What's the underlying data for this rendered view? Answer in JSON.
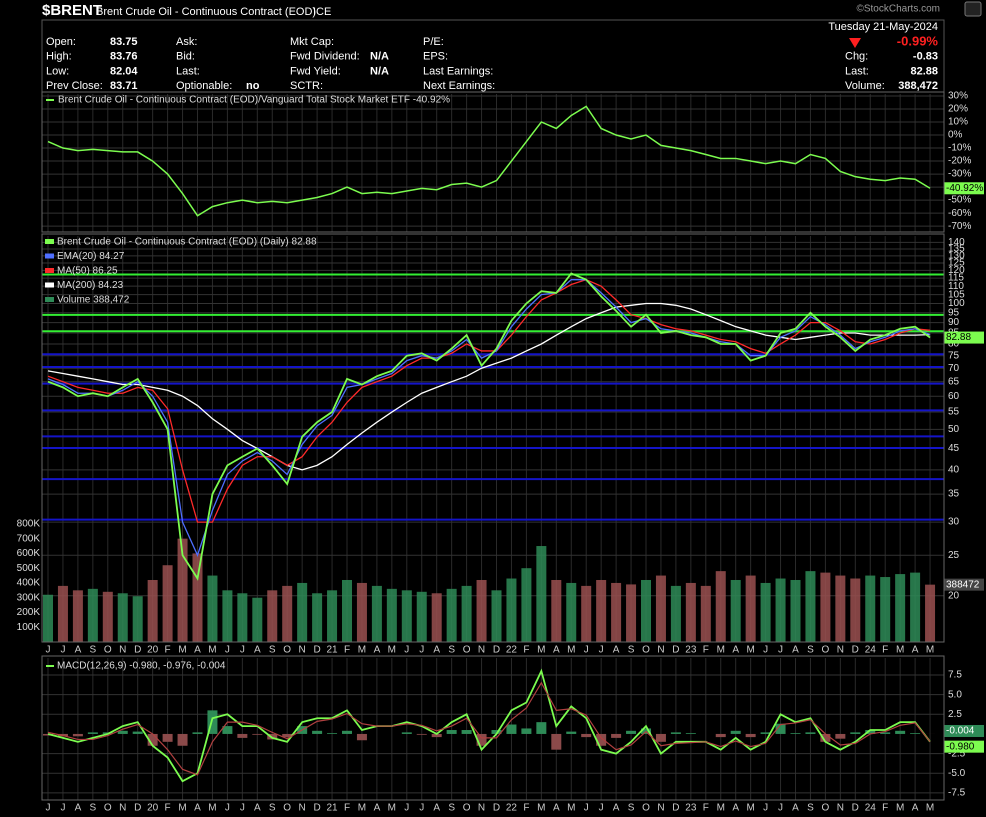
{
  "header": {
    "symbol": "$BRENT",
    "name": "Brent Crude Oil - Continuous Contract (EOD)",
    "exchange": "ICE",
    "watermark": "©StockCharts.com",
    "date": "Tuesday 21-May-2024",
    "change_pct": "-0.99%",
    "fields": [
      [
        {
          "label": "Open:",
          "value": 83.75
        },
        {
          "label": "High:",
          "value": 83.76
        },
        {
          "label": "Low:",
          "value": 82.04
        },
        {
          "label": "Prev Close:",
          "value": 83.71
        }
      ],
      [
        {
          "label": "Ask:"
        },
        {
          "label": "Bid:"
        },
        {
          "label": "Last:"
        },
        {
          "label": "Optionable:",
          "value": "no"
        }
      ],
      [
        {
          "label": "Mkt Cap:"
        },
        {
          "label": "Fwd Dividend:",
          "value": "N/A"
        },
        {
          "label": "Fwd Yield:",
          "value": "N/A"
        },
        {
          "label": "SCTR:"
        }
      ],
      [
        {
          "label": "P/E:"
        },
        {
          "label": "EPS:"
        },
        {
          "label": "Last Earnings:"
        },
        {
          "label": "Next Earnings:"
        }
      ],
      [
        {
          "label": "Chg:",
          "value": -0.83
        },
        {
          "label": "Last:",
          "value": 82.88
        },
        {
          "label": "Volume:",
          "value": "388,472"
        }
      ]
    ]
  },
  "chart_data": [
    {
      "type": "line",
      "legend_position": "top-left",
      "grid": true,
      "series": [
        {
          "name": "Brent Crude Oil - Continuous Contract (EOD)/Vanguard Total Stock Market ETF -40.92%",
          "color": "#7cfc4f",
          "values": [
            -5,
            -10,
            -12,
            -11,
            -12,
            -13,
            -13,
            -20,
            -30,
            -45,
            -62,
            -55,
            -52,
            -50,
            -52,
            -51,
            -52,
            -50,
            -48,
            -45,
            -40,
            -45,
            -44,
            -45,
            -43,
            -41,
            -42,
            -38,
            -37,
            -40,
            -35,
            -20,
            -5,
            10,
            5,
            15,
            22,
            5,
            0,
            -3,
            0,
            -8,
            -10,
            -12,
            -15,
            -18,
            -18,
            -20,
            -22,
            -20,
            -22,
            -15,
            -18,
            -28,
            -32,
            -34,
            -35,
            -33,
            -34,
            -40.92
          ],
          "value_labels": [
            null,
            null,
            null,
            null,
            null,
            null,
            null,
            null,
            null,
            null,
            null,
            null,
            null,
            null,
            null,
            null,
            null,
            null,
            null,
            null,
            null,
            null,
            null,
            null,
            null,
            null,
            null,
            null,
            null,
            null,
            null,
            null,
            null,
            null,
            null,
            null,
            null,
            null,
            null,
            null,
            null,
            null,
            null,
            null,
            null,
            null,
            null,
            null,
            null,
            null,
            null,
            null,
            null,
            null,
            null,
            null,
            null,
            null,
            null,
            "-40.92%"
          ]
        }
      ],
      "ylim": [
        -74.5,
        31.5
      ],
      "yticks": [
        {
          "value": 30,
          "label": "30%"
        },
        {
          "value": 20,
          "label": "20%"
        },
        {
          "value": 10,
          "label": "10%"
        },
        {
          "value": 0,
          "label": "0%"
        },
        {
          "value": -10,
          "label": "-10%"
        },
        {
          "value": -20,
          "label": "-20%"
        },
        {
          "value": -30,
          "label": "-30%"
        },
        {
          "value": -40,
          "label": "-40%"
        },
        {
          "value": -50,
          "label": "-50%"
        },
        {
          "value": -60,
          "label": "-60%"
        },
        {
          "value": -70,
          "label": "-70%"
        }
      ]
    },
    {
      "type": "price",
      "log_scale": true,
      "grid": true,
      "legend_position": "top-left",
      "categories": [
        "J",
        "J",
        "A",
        "S",
        "O",
        "N",
        "D",
        "20",
        "F",
        "M",
        "A",
        "M",
        "J",
        "J",
        "A",
        "S",
        "O",
        "N",
        "D",
        "21",
        "F",
        "M",
        "A",
        "M",
        "J",
        "J",
        "A",
        "S",
        "O",
        "N",
        "D",
        "22",
        "F",
        "M",
        "A",
        "M",
        "J",
        "J",
        "A",
        "S",
        "O",
        "N",
        "D",
        "23",
        "F",
        "M",
        "A",
        "M",
        "J",
        "J",
        "A",
        "S",
        "O",
        "N",
        "D",
        "24",
        "F",
        "M",
        "A",
        "M"
      ],
      "series": [
        {
          "name": "Brent Crude Oil - Continuous Contract (EOD) (Daily) 82.88",
          "color": "#7cfc4f",
          "values": [
            65,
            63,
            60,
            61,
            60,
            63,
            66,
            58,
            50,
            25,
            22,
            35,
            41,
            43,
            45,
            41,
            37,
            48,
            52,
            55,
            66,
            64,
            67,
            69,
            75,
            76,
            73,
            78,
            84,
            71,
            78,
            91,
            100,
            107,
            106,
            118,
            114,
            104,
            96,
            88,
            94,
            85,
            86,
            84,
            83,
            80,
            80,
            73,
            75,
            85,
            87,
            95,
            88,
            83,
            77,
            82,
            84,
            87,
            88,
            82.88
          ]
        },
        {
          "name": "EMA(20) 84.27",
          "color": "#4f6fff",
          "values": [
            66,
            64,
            61,
            61,
            60,
            62,
            65,
            60,
            52,
            30,
            25,
            32,
            39,
            42,
            44,
            42,
            39,
            46,
            51,
            54,
            63,
            64,
            66,
            68,
            73,
            75,
            74,
            77,
            82,
            74,
            77,
            88,
            97,
            105,
            106,
            114,
            114,
            106,
            98,
            90,
            92,
            87,
            86,
            85,
            83,
            81,
            80,
            75,
            75,
            83,
            86,
            93,
            89,
            84,
            78,
            81,
            83,
            86,
            87,
            84.27
          ]
        },
        {
          "name": "MA(50) 86.25",
          "color": "#ff2a2a",
          "values": [
            67,
            65,
            63,
            62,
            61,
            61,
            63,
            62,
            56,
            40,
            30,
            30,
            36,
            41,
            43,
            43,
            41,
            43,
            48,
            52,
            58,
            63,
            65,
            67,
            71,
            74,
            74,
            76,
            80,
            77,
            77,
            84,
            93,
            102,
            106,
            111,
            114,
            110,
            102,
            94,
            92,
            89,
            87,
            86,
            84,
            82,
            81,
            78,
            76,
            80,
            84,
            90,
            90,
            86,
            81,
            80,
            82,
            85,
            87,
            86.25
          ]
        },
        {
          "name": "MA(200) 84.23",
          "color": "#ffffff",
          "values": [
            69,
            68,
            67,
            66,
            65,
            64,
            64,
            63,
            62,
            60,
            57,
            53,
            50,
            47,
            45,
            43,
            41,
            40,
            41,
            43,
            46,
            49,
            52,
            55,
            58,
            61,
            63,
            65,
            67,
            70,
            72,
            74,
            77,
            80,
            84,
            88,
            92,
            95,
            98,
            99,
            100,
            100,
            99,
            97,
            94,
            91,
            88,
            86,
            84,
            83,
            82,
            83,
            84,
            85,
            85,
            84,
            84,
            84,
            84,
            84.23
          ]
        }
      ],
      "volume": {
        "name": "Volume 388,472",
        "colors": [
          "#2e8b57",
          "#9a5050"
        ],
        "values": [
          320000,
          380000,
          350000,
          360000,
          340000,
          330000,
          310000,
          420000,
          520000,
          700000,
          600000,
          450000,
          350000,
          330000,
          300000,
          350000,
          380000,
          400000,
          330000,
          350000,
          420000,
          400000,
          380000,
          360000,
          350000,
          340000,
          330000,
          360000,
          380000,
          420000,
          350000,
          430000,
          500000,
          650000,
          420000,
          400000,
          380000,
          420000,
          400000,
          390000,
          420000,
          450000,
          380000,
          400000,
          380000,
          480000,
          420000,
          450000,
          400000,
          430000,
          420000,
          480000,
          470000,
          450000,
          430000,
          450000,
          440000,
          460000,
          470000,
          388472
        ],
        "ylim": [
          0,
          2750000
        ],
        "yticks": [
          {
            "value": 100000,
            "label": "100K"
          },
          {
            "value": 200000,
            "label": "200K"
          },
          {
            "value": 300000,
            "label": "300K"
          },
          {
            "value": 400000,
            "label": "400K"
          },
          {
            "value": 500000,
            "label": "500K"
          },
          {
            "value": 600000,
            "label": "600K"
          },
          {
            "value": 700000,
            "label": "700K"
          },
          {
            "value": 800000,
            "label": "800K"
          }
        ]
      },
      "hlines": [
        {
          "value": 117.3,
          "color": "#33ee33"
        },
        {
          "value": 93.9,
          "color": "#33ee33"
        },
        {
          "value": 85.8,
          "color": "#33ee33"
        },
        {
          "value": 75.6,
          "color": "#1414c8"
        },
        {
          "value": 70.5,
          "color": "#1414c8"
        },
        {
          "value": 64.3,
          "color": "#1414c8"
        },
        {
          "value": 55.5,
          "color": "#1414c8"
        },
        {
          "value": 48.1,
          "color": "#1414c8"
        },
        {
          "value": 45.1,
          "color": "#1414c8"
        },
        {
          "value": 38,
          "color": "#1414c8"
        },
        {
          "value": 30.4,
          "color": "#1414c8"
        }
      ],
      "ylim": [
        15.5,
        145
      ],
      "yticks": [
        140,
        135,
        130,
        125,
        120,
        115,
        110,
        105,
        100,
        95,
        90,
        85,
        80,
        75,
        70,
        65,
        60,
        55,
        50,
        45,
        40,
        35,
        30,
        25,
        20
      ]
    },
    {
      "type": "macd",
      "legend": "MACD(12,26,9) -0.980, -0.976, -0.004",
      "grid": true,
      "categories": [
        "J",
        "J",
        "A",
        "S",
        "O",
        "N",
        "D",
        "20",
        "F",
        "M",
        "A",
        "M",
        "J",
        "J",
        "A",
        "S",
        "O",
        "N",
        "D",
        "21",
        "F",
        "M",
        "A",
        "M",
        "J",
        "J",
        "A",
        "S",
        "O",
        "N",
        "D",
        "22",
        "F",
        "M",
        "A",
        "M",
        "J",
        "J",
        "A",
        "S",
        "O",
        "N",
        "D",
        "23",
        "F",
        "M",
        "A",
        "M",
        "J",
        "J",
        "A",
        "S",
        "O",
        "N",
        "D",
        "24",
        "F",
        "M",
        "A",
        "M"
      ],
      "series": [
        {
          "color": "#7cfc4f",
          "values": [
            0,
            -0.5,
            -1,
            -0.5,
            0,
            1,
            1.5,
            -1.5,
            -3,
            -6,
            -5,
            2,
            2.5,
            1,
            1,
            -0.5,
            -1,
            1.5,
            2,
            2,
            3,
            0.5,
            1,
            1,
            1.5,
            1,
            0,
            1.5,
            2.5,
            -2,
            0,
            3,
            4,
            8,
            1,
            3.5,
            2,
            -2,
            -2.5,
            -1,
            1,
            -2.5,
            -1,
            -1,
            -1,
            -2,
            -0.5,
            -2,
            -1,
            2.5,
            1.5,
            2,
            -1,
            -2,
            -1,
            0.5,
            0.5,
            1.5,
            1.5,
            -0.98
          ],
          "value_labels": [
            null,
            null,
            null,
            null,
            null,
            null,
            null,
            null,
            null,
            null,
            null,
            null,
            null,
            null,
            null,
            null,
            null,
            null,
            null,
            null,
            null,
            null,
            null,
            null,
            null,
            null,
            null,
            null,
            null,
            null,
            null,
            null,
            null,
            null,
            null,
            null,
            null,
            null,
            null,
            null,
            null,
            null,
            null,
            null,
            null,
            null,
            null,
            null,
            null,
            null,
            null,
            null,
            null,
            null,
            null,
            null,
            null,
            null,
            null,
            "-0.980"
          ]
        },
        {
          "color": "#b04040",
          "values": [
            0.2,
            -0.2,
            -0.7,
            -0.7,
            -0.2,
            0.6,
            1.2,
            0,
            -2,
            -4.5,
            -5.2,
            -1,
            1.5,
            1.5,
            1.1,
            0.2,
            -0.6,
            0.5,
            1.6,
            1.9,
            2.6,
            1.3,
            1,
            1,
            1.3,
            1.1,
            0.4,
            1,
            2,
            -0.5,
            -0.5,
            1.8,
            3.3,
            6.5,
            3,
            3.2,
            2.4,
            -0.5,
            -2,
            -1.4,
            0.3,
            -1.5,
            -1.2,
            -1.1,
            -1,
            -1.6,
            -0.9,
            -1.6,
            -1.2,
            1.2,
            1.4,
            1.8,
            0,
            -1.4,
            -1.2,
            0,
            0.3,
            1.1,
            1.4,
            -0.976
          ]
        }
      ],
      "histogram": {
        "colors": [
          "#2e8b57",
          "#8b4a4a"
        ],
        "values": [
          -0.2,
          -0.3,
          -0.3,
          0.2,
          0.2,
          0.4,
          0.3,
          -1.5,
          -1,
          -1.5,
          0.2,
          3,
          1,
          -0.5,
          -0.1,
          -0.7,
          -0.4,
          1,
          0.4,
          0.1,
          0.4,
          -0.8,
          0,
          0,
          0.2,
          -0.1,
          -0.4,
          0.5,
          0.5,
          -1.5,
          0.5,
          1.2,
          0.7,
          1.5,
          -2,
          0.3,
          -0.4,
          -1.5,
          -0.5,
          0.4,
          0.7,
          -1,
          0.2,
          0.1,
          0,
          -0.4,
          0.4,
          -0.4,
          0.2,
          1.3,
          0.1,
          0.2,
          -1,
          -0.6,
          0.2,
          0.5,
          0.2,
          0.4,
          0.1,
          -0.004
        ]
      },
      "ylim": [
        -8.4,
        9.66
      ],
      "yticks": [
        7.5,
        {
          "value": 5,
          "label": "5.0"
        },
        2.5,
        -2.5,
        {
          "value": -5,
          "label": "-5.0"
        },
        -7.5
      ]
    }
  ]
}
